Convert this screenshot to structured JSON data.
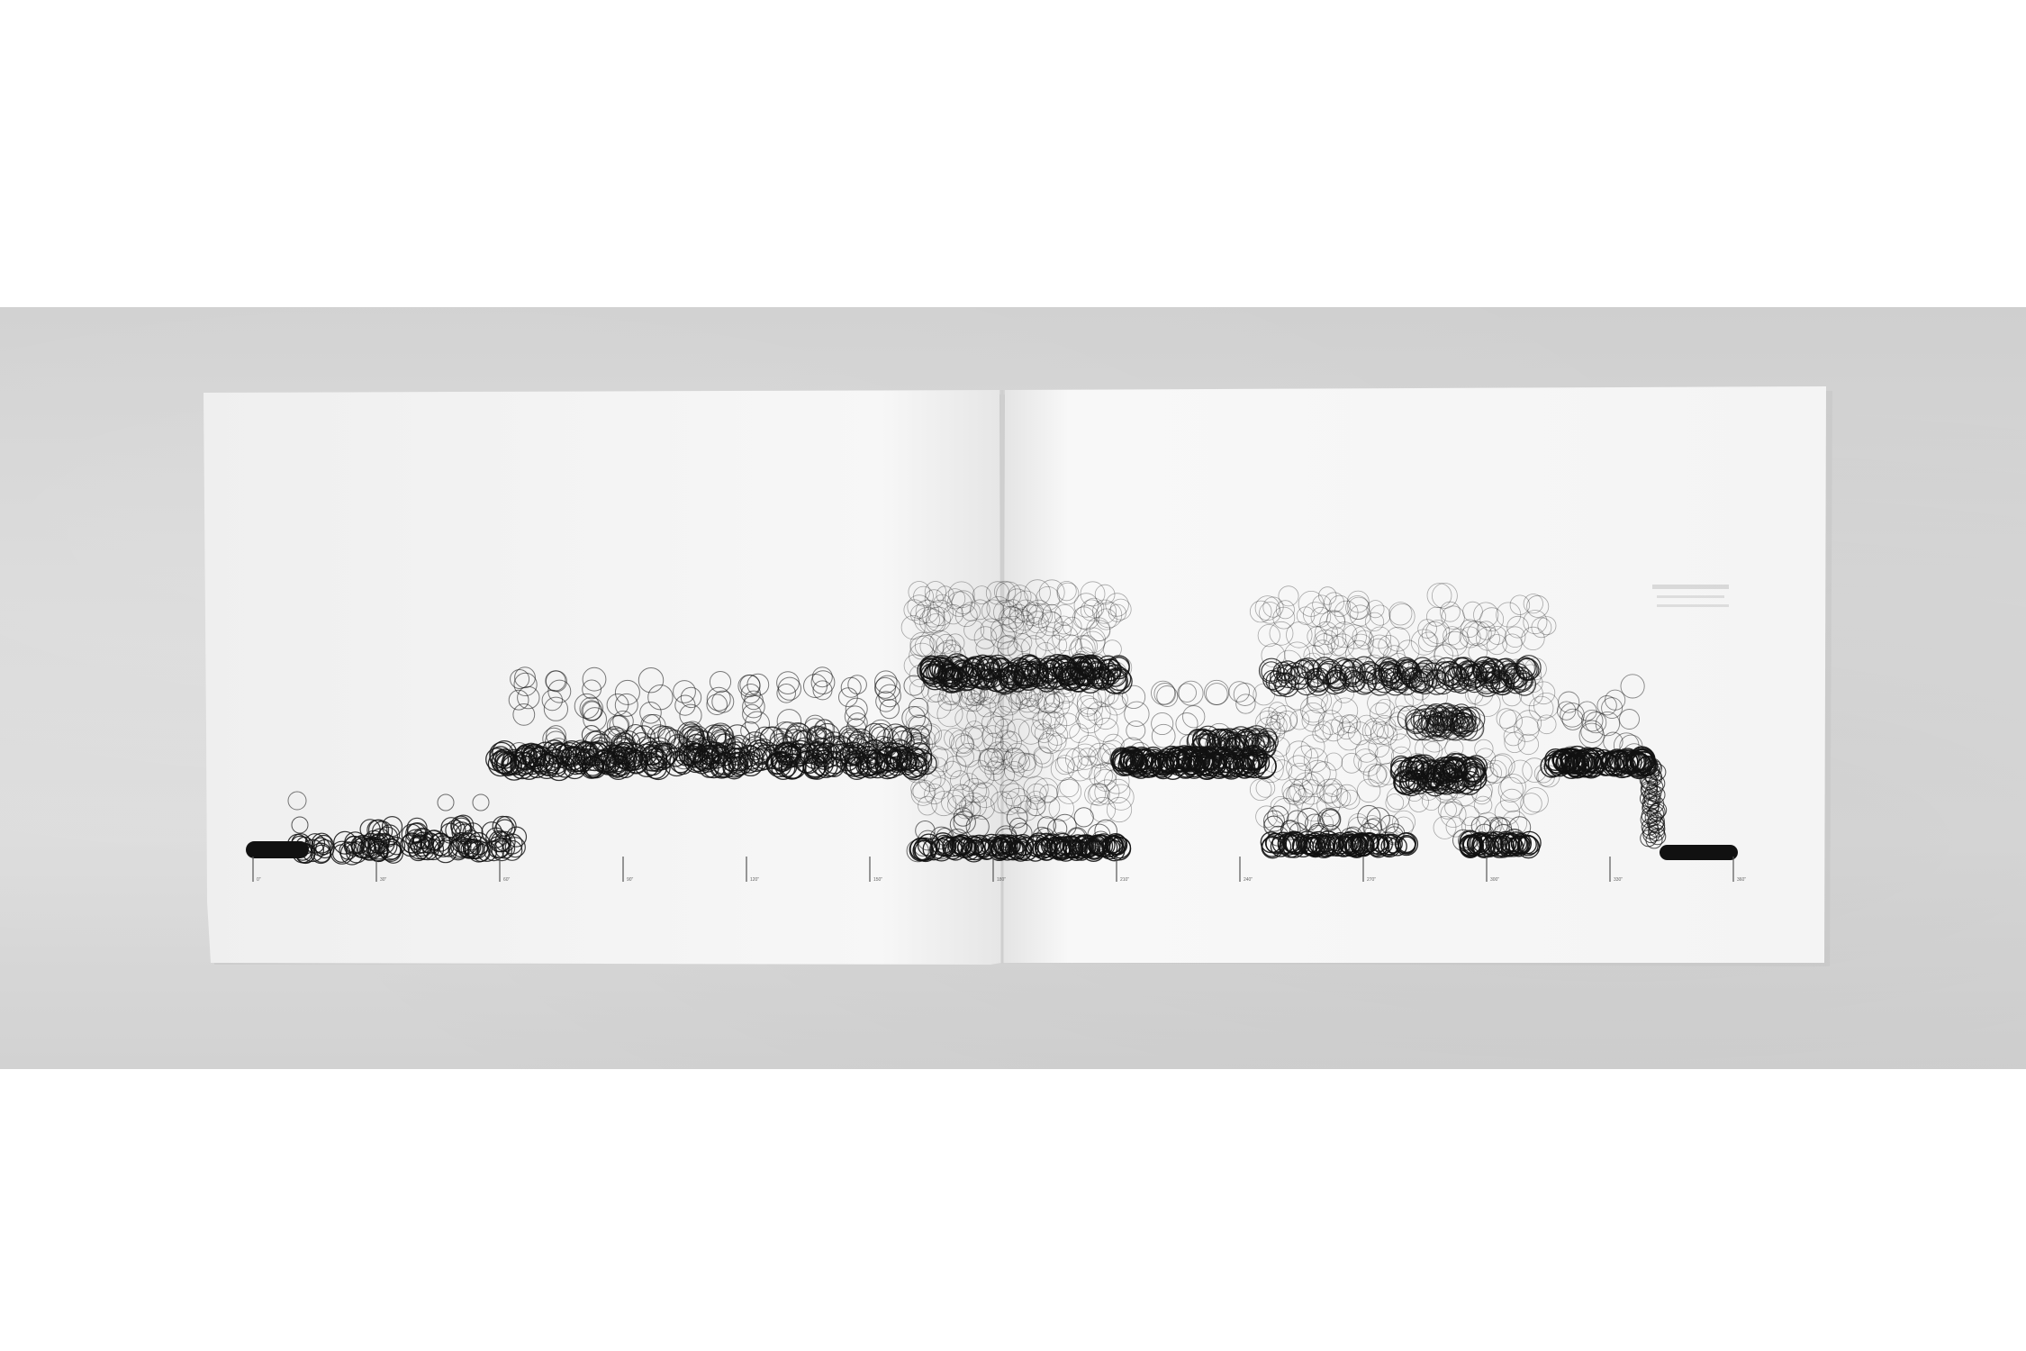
{
  "scene": {
    "subject": "unfolded printed sheet with circle notation",
    "colors": {
      "backdrop": "#d6d6d6",
      "paper": "#f5f5f5",
      "ink": "#111111"
    }
  },
  "timeline_labels": [
    "0\"",
    "30\"",
    "60\"",
    "90\"",
    "120\"",
    "150\"",
    "180\"",
    "210\"",
    "240\"",
    "270\"",
    "300\"",
    "330\"",
    "360\""
  ]
}
